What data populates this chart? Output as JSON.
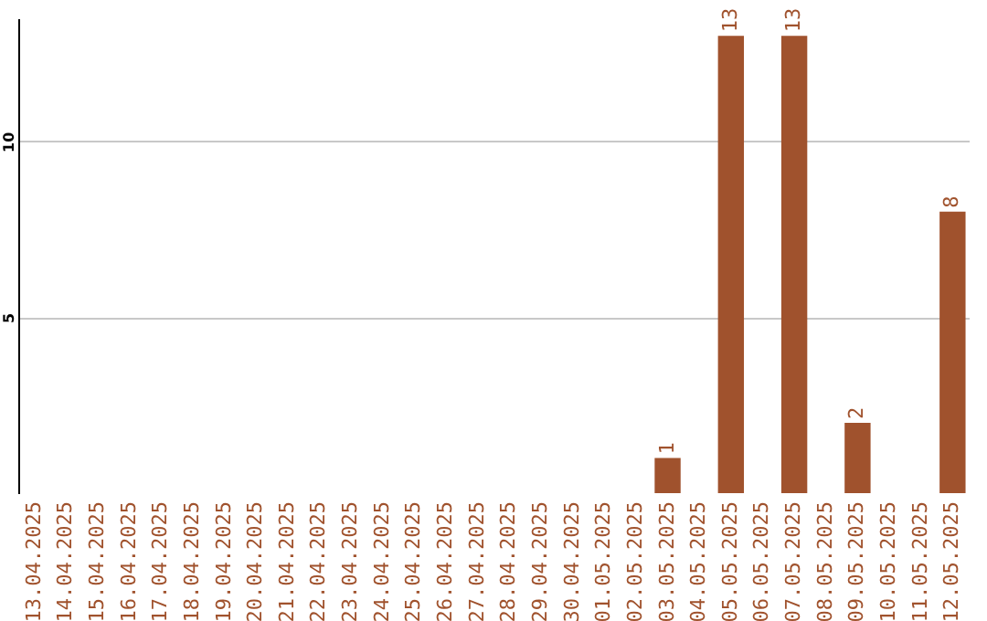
{
  "chart_data": {
    "type": "bar",
    "categories": [
      "13.04.2025",
      "14.04.2025",
      "15.04.2025",
      "16.04.2025",
      "17.04.2025",
      "18.04.2025",
      "19.04.2025",
      "20.04.2025",
      "21.04.2025",
      "22.04.2025",
      "23.04.2025",
      "24.04.2025",
      "25.04.2025",
      "26.04.2025",
      "27.04.2025",
      "28.04.2025",
      "29.04.2025",
      "30.04.2025",
      "01.05.2025",
      "02.05.2025",
      "03.05.2025",
      "04.05.2025",
      "05.05.2025",
      "06.05.2025",
      "07.05.2025",
      "08.05.2025",
      "09.05.2025",
      "10.05.2025",
      "11.05.2025",
      "12.05.2025"
    ],
    "values": [
      0,
      0,
      0,
      0,
      0,
      0,
      0,
      0,
      0,
      0,
      0,
      0,
      0,
      0,
      0,
      0,
      0,
      0,
      0,
      0,
      1,
      0,
      13,
      0,
      13,
      0,
      2,
      0,
      0,
      8
    ],
    "value_labels": [
      null,
      null,
      null,
      null,
      null,
      null,
      null,
      null,
      null,
      null,
      null,
      null,
      null,
      null,
      null,
      null,
      null,
      null,
      null,
      null,
      "1",
      null,
      "13",
      null,
      "13",
      null,
      "2",
      null,
      null,
      "8"
    ],
    "color": "#a0522d",
    "ylim": [
      0,
      13.5
    ],
    "yticks": [
      5,
      10
    ],
    "grid": "y"
  }
}
